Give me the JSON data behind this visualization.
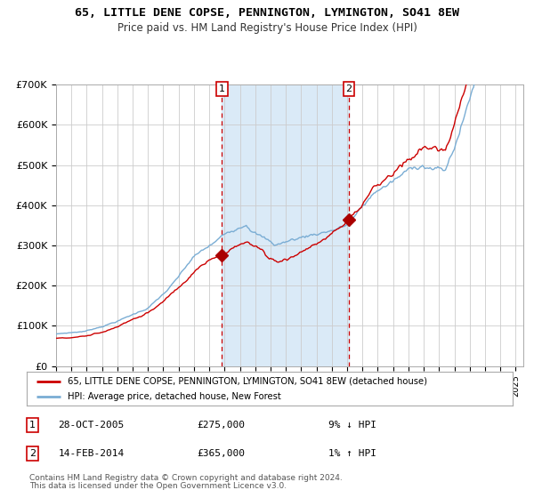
{
  "title": "65, LITTLE DENE COPSE, PENNINGTON, LYMINGTON, SO41 8EW",
  "subtitle": "Price paid vs. HM Land Registry's House Price Index (HPI)",
  "legend_line1": "65, LITTLE DENE COPSE, PENNINGTON, LYMINGTON, SO41 8EW (detached house)",
  "legend_line2": "HPI: Average price, detached house, New Forest",
  "annotation1_text": "28-OCT-2005",
  "annotation1_price": "£275,000",
  "annotation1_pct": "9% ↓ HPI",
  "annotation2_text": "14-FEB-2014",
  "annotation2_price": "£365,000",
  "annotation2_pct": "1% ↑ HPI",
  "footer1": "Contains HM Land Registry data © Crown copyright and database right 2024.",
  "footer2": "This data is licensed under the Open Government Licence v3.0.",
  "hpi_color": "#7aadd4",
  "price_color": "#cc0000",
  "marker_color": "#aa0000",
  "vline_color": "#cc0000",
  "shade_color": "#daeaf7",
  "background_color": "#ffffff",
  "grid_color": "#cccccc",
  "ylim_min": 0,
  "ylim_max": 700000,
  "yticks": [
    0,
    100000,
    200000,
    300000,
    400000,
    500000,
    600000,
    700000
  ],
  "ytick_labels": [
    "£0",
    "£100K",
    "£200K",
    "£300K",
    "£400K",
    "£500K",
    "£600K",
    "£700K"
  ],
  "t1_year": 2005.83,
  "t2_year": 2014.12,
  "t1_price": 275000,
  "t2_price": 365000
}
